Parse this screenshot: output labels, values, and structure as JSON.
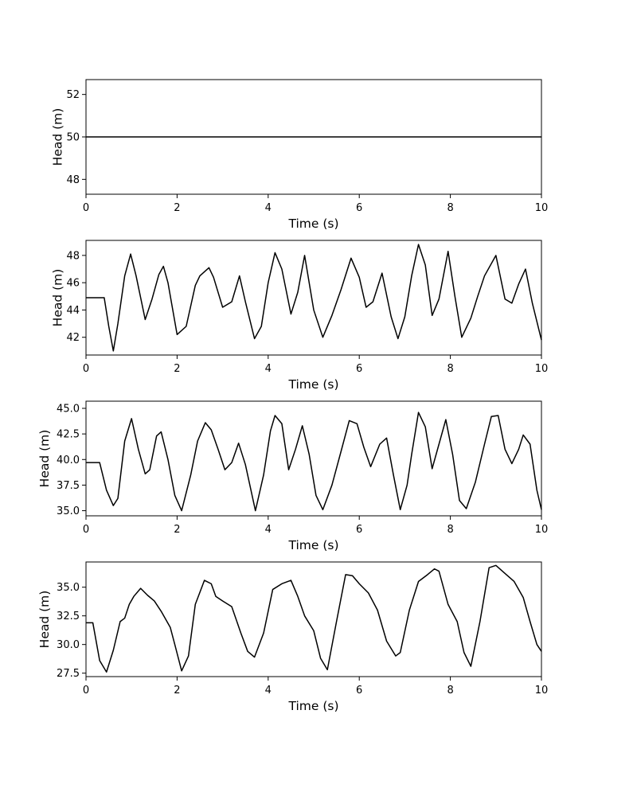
{
  "figure": {
    "background": "#ffffff",
    "line_color": "#000000"
  },
  "chart_data": [
    {
      "type": "line",
      "xlabel": "Time (s)",
      "ylabel": "Head (m)",
      "xlim": [
        0,
        10
      ],
      "ylim": [
        47.3,
        52.7
      ],
      "xticks": [
        "0",
        "2",
        "4",
        "6",
        "8",
        "10"
      ],
      "yticks": [
        "48",
        "50",
        "52"
      ],
      "grid": false,
      "series": [
        {
          "x": [
            0,
            10
          ],
          "y": [
            50,
            50
          ]
        }
      ]
    },
    {
      "type": "line",
      "xlabel": "Time (s)",
      "ylabel": "Head (m)",
      "xlim": [
        0,
        10
      ],
      "ylim": [
        40.7,
        49.1
      ],
      "xticks": [
        "0",
        "2",
        "4",
        "6",
        "8",
        "10"
      ],
      "yticks": [
        "42",
        "44",
        "46",
        "48"
      ],
      "grid": false,
      "series": [
        {
          "x": [
            0,
            0.4,
            0.5,
            0.6,
            0.7,
            0.85,
            0.98,
            1.1,
            1.3,
            1.45,
            1.6,
            1.7,
            1.8,
            2.0,
            2.2,
            2.4,
            2.5,
            2.6,
            2.7,
            2.8,
            3.0,
            3.2,
            3.37,
            3.5,
            3.7,
            3.85,
            4.0,
            4.15,
            4.3,
            4.5,
            4.65,
            4.8,
            5.0,
            5.2,
            5.4,
            5.6,
            5.82,
            6.0,
            6.15,
            6.3,
            6.5,
            6.7,
            6.85,
            7.0,
            7.15,
            7.3,
            7.45,
            7.6,
            7.75,
            7.95,
            8.1,
            8.25,
            8.45,
            8.6,
            8.75,
            9.0,
            9.2,
            9.35,
            9.5,
            9.65,
            9.8,
            10.0
          ],
          "y": [
            44.9,
            44.9,
            42.8,
            41.0,
            43.0,
            46.5,
            48.1,
            46.5,
            43.3,
            44.8,
            46.6,
            47.2,
            46.0,
            42.2,
            42.8,
            45.8,
            46.5,
            46.8,
            47.1,
            46.4,
            44.2,
            44.6,
            46.5,
            44.6,
            41.9,
            42.8,
            46.0,
            48.2,
            47.0,
            43.7,
            45.3,
            48.0,
            44.0,
            42.0,
            43.6,
            45.5,
            47.8,
            46.4,
            44.2,
            44.6,
            46.7,
            43.5,
            41.9,
            43.5,
            46.5,
            48.8,
            47.3,
            43.6,
            44.8,
            48.3,
            45.0,
            42.0,
            43.4,
            45.0,
            46.5,
            48.0,
            44.8,
            44.5,
            45.9,
            47.0,
            44.5,
            41.8
          ]
        }
      ]
    },
    {
      "type": "line",
      "xlabel": "Time (s)",
      "ylabel": "Head (m)",
      "xlim": [
        0,
        10
      ],
      "ylim": [
        34.5,
        45.7
      ],
      "xticks": [
        "0",
        "2",
        "4",
        "6",
        "8",
        "10"
      ],
      "yticks": [
        "35.0",
        "37.5",
        "40.0",
        "42.5",
        "45.0"
      ],
      "grid": false,
      "series": [
        {
          "x": [
            0,
            0.3,
            0.45,
            0.6,
            0.7,
            0.85,
            1.0,
            1.15,
            1.3,
            1.4,
            1.55,
            1.65,
            1.8,
            1.95,
            2.1,
            2.3,
            2.45,
            2.62,
            2.75,
            2.9,
            3.05,
            3.2,
            3.35,
            3.5,
            3.72,
            3.9,
            4.05,
            4.15,
            4.3,
            4.45,
            4.6,
            4.75,
            4.9,
            5.05,
            5.2,
            5.4,
            5.6,
            5.78,
            5.95,
            6.1,
            6.25,
            6.45,
            6.6,
            6.75,
            6.9,
            7.05,
            7.15,
            7.3,
            7.45,
            7.6,
            7.75,
            7.9,
            8.05,
            8.2,
            8.35,
            8.55,
            8.75,
            8.9,
            9.05,
            9.2,
            9.35,
            9.5,
            9.6,
            9.75,
            9.9,
            10.0
          ],
          "y": [
            39.7,
            39.7,
            37.0,
            35.5,
            36.2,
            41.8,
            44.0,
            41.0,
            38.6,
            39.0,
            42.3,
            42.7,
            40.0,
            36.5,
            35.0,
            38.5,
            41.8,
            43.6,
            42.9,
            41.0,
            39.0,
            39.7,
            41.6,
            39.5,
            35.0,
            38.5,
            42.8,
            44.3,
            43.5,
            39.0,
            41.0,
            43.3,
            40.5,
            36.5,
            35.1,
            37.5,
            40.8,
            43.8,
            43.5,
            41.2,
            39.3,
            41.5,
            42.1,
            38.5,
            35.1,
            37.5,
            40.5,
            44.6,
            43.2,
            39.1,
            41.5,
            43.9,
            40.5,
            36.0,
            35.2,
            37.8,
            41.5,
            44.2,
            44.3,
            41.0,
            39.6,
            41.0,
            42.4,
            41.5,
            37.0,
            35.1
          ]
        }
      ]
    },
    {
      "type": "line",
      "xlabel": "Time (s)",
      "ylabel": "Head (m)",
      "xlim": [
        0,
        10
      ],
      "ylim": [
        27.2,
        37.2
      ],
      "xticks": [
        "0",
        "2",
        "4",
        "6",
        "8",
        "10"
      ],
      "yticks": [
        "27.5",
        "30.0",
        "32.5",
        "35.0"
      ],
      "grid": false,
      "series": [
        {
          "x": [
            0,
            0.15,
            0.3,
            0.45,
            0.6,
            0.75,
            0.85,
            0.95,
            1.05,
            1.2,
            1.35,
            1.5,
            1.65,
            1.85,
            1.95,
            2.1,
            2.25,
            2.4,
            2.6,
            2.75,
            2.85,
            3.0,
            3.2,
            3.4,
            3.55,
            3.7,
            3.9,
            4.1,
            4.3,
            4.5,
            4.65,
            4.8,
            5.0,
            5.15,
            5.3,
            5.5,
            5.7,
            5.85,
            6.0,
            6.2,
            6.4,
            6.6,
            6.8,
            6.9,
            7.1,
            7.3,
            7.5,
            7.65,
            7.75,
            7.95,
            8.15,
            8.3,
            8.45,
            8.65,
            8.85,
            9.0,
            9.2,
            9.4,
            9.6,
            9.75,
            9.9,
            10.0
          ],
          "y": [
            31.9,
            31.9,
            28.6,
            27.6,
            29.5,
            32.0,
            32.3,
            33.5,
            34.2,
            34.9,
            34.3,
            33.8,
            32.9,
            31.5,
            30.0,
            27.7,
            29.0,
            33.5,
            35.6,
            35.3,
            34.2,
            33.8,
            33.3,
            31.0,
            29.4,
            28.9,
            31.0,
            34.8,
            35.3,
            35.6,
            34.2,
            32.5,
            31.2,
            28.8,
            27.8,
            32.0,
            36.1,
            36.0,
            35.3,
            34.5,
            33.0,
            30.3,
            29.0,
            29.3,
            33.0,
            35.5,
            36.1,
            36.6,
            36.4,
            33.5,
            32.0,
            29.3,
            28.1,
            32.0,
            36.7,
            36.9,
            36.2,
            35.5,
            34.1,
            32.0,
            30.0,
            29.4
          ]
        }
      ]
    }
  ]
}
